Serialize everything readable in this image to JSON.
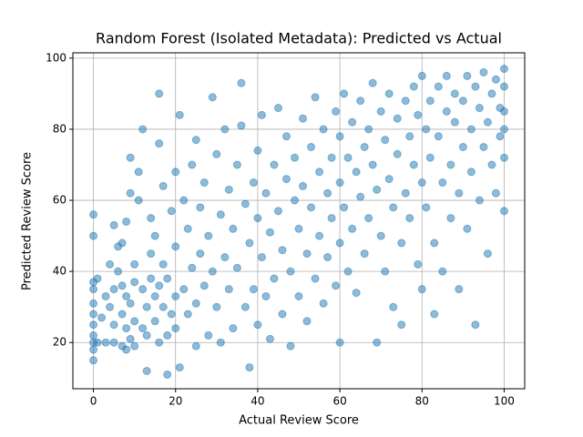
{
  "chart_data": {
    "type": "scatter",
    "title": "Random Forest (Isolated Metadata): Predicted vs Actual",
    "x_label": "Actual Review Score",
    "y_label": "Predicted Review Score",
    "color": "#1f77b4",
    "grid": true,
    "xlim": [
      -5,
      105
    ],
    "ylim": [
      7,
      101.5
    ],
    "xticks": [
      0,
      20,
      40,
      60,
      80,
      100
    ],
    "yticks": [
      20,
      40,
      60,
      80,
      100
    ],
    "x": [
      0,
      0,
      0,
      0,
      0,
      0,
      0,
      0,
      0,
      0,
      0,
      1,
      1,
      2,
      3,
      3,
      4,
      4,
      5,
      5,
      5,
      5,
      6,
      6,
      7,
      7,
      7,
      7,
      8,
      8,
      8,
      8,
      9,
      9,
      9,
      9,
      10,
      10,
      10,
      10,
      11,
      11,
      12,
      12,
      12,
      13,
      13,
      13,
      14,
      14,
      14,
      15,
      15,
      15,
      16,
      16,
      16,
      16,
      17,
      17,
      17,
      18,
      18,
      18,
      19,
      19,
      20,
      20,
      20,
      20,
      21,
      21,
      22,
      22,
      23,
      23,
      24,
      24,
      25,
      25,
      25,
      26,
      26,
      27,
      27,
      28,
      28,
      29,
      29,
      30,
      30,
      31,
      31,
      32,
      32,
      33,
      33,
      34,
      34,
      35,
      35,
      36,
      36,
      37,
      37,
      38,
      38,
      39,
      39,
      40,
      40,
      40,
      41,
      41,
      42,
      42,
      43,
      43,
      44,
      44,
      45,
      45,
      46,
      46,
      47,
      47,
      48,
      48,
      49,
      49,
      50,
      50,
      51,
      51,
      52,
      52,
      53,
      53,
      54,
      54,
      55,
      55,
      56,
      56,
      57,
      57,
      58,
      58,
      59,
      59,
      60,
      60,
      60,
      60,
      61,
      61,
      62,
      62,
      63,
      63,
      64,
      64,
      65,
      65,
      66,
      66,
      67,
      67,
      68,
      68,
      69,
      69,
      70,
      70,
      71,
      71,
      72,
      72,
      73,
      73,
      74,
      74,
      75,
      75,
      76,
      76,
      77,
      77,
      78,
      78,
      79,
      79,
      80,
      80,
      80,
      81,
      81,
      82,
      82,
      83,
      83,
      84,
      84,
      85,
      85,
      86,
      86,
      87,
      87,
      88,
      88,
      89,
      89,
      90,
      90,
      91,
      91,
      92,
      92,
      93,
      93,
      94,
      94,
      95,
      95,
      96,
      96,
      97,
      97,
      98,
      98,
      99,
      99,
      100,
      100,
      100,
      100,
      100,
      100
    ],
    "y": [
      15,
      18,
      20,
      22,
      25,
      28,
      31,
      35,
      37,
      50,
      56,
      20,
      38,
      27,
      20,
      33,
      42,
      30,
      20,
      25,
      35,
      53,
      40,
      47,
      19,
      28,
      36,
      48,
      18,
      24,
      33,
      54,
      62,
      72,
      31,
      21,
      19,
      26,
      37,
      42,
      60,
      68,
      35,
      24,
      80,
      30,
      22,
      12,
      55,
      38,
      45,
      33,
      26,
      50,
      90,
      76,
      36,
      20,
      42,
      30,
      64,
      11,
      22,
      38,
      57,
      28,
      47,
      33,
      68,
      24,
      13,
      84,
      35,
      60,
      52,
      28,
      41,
      70,
      31,
      19,
      77,
      58,
      45,
      36,
      65,
      22,
      50,
      89,
      40,
      30,
      73,
      56,
      20,
      80,
      44,
      63,
      35,
      52,
      24,
      70,
      41,
      81,
      93,
      30,
      59,
      48,
      13,
      65,
      35,
      74,
      55,
      25,
      84,
      44,
      62,
      33,
      51,
      21,
      70,
      38,
      86,
      57,
      46,
      28,
      66,
      78,
      40,
      19,
      60,
      72,
      52,
      33,
      83,
      64,
      45,
      26,
      75,
      58,
      89,
      38,
      68,
      50,
      80,
      31,
      62,
      44,
      72,
      55,
      85,
      36,
      65,
      48,
      20,
      78,
      90,
      58,
      72,
      40,
      82,
      52,
      68,
      34,
      88,
      61,
      75,
      45,
      80,
      55,
      93,
      70,
      63,
      20,
      85,
      50,
      77,
      40,
      90,
      66,
      58,
      30,
      83,
      73,
      48,
      25,
      88,
      62,
      78,
      55,
      92,
      70,
      42,
      84,
      65,
      95,
      35,
      80,
      58,
      88,
      72,
      48,
      28,
      92,
      78,
      65,
      40,
      85,
      95,
      70,
      55,
      82,
      90,
      62,
      35,
      88,
      75,
      95,
      52,
      80,
      68,
      92,
      25,
      86,
      60,
      96,
      75,
      82,
      45,
      90,
      70,
      94,
      62,
      86,
      78,
      97,
      92,
      85,
      80,
      72,
      57
    ]
  }
}
